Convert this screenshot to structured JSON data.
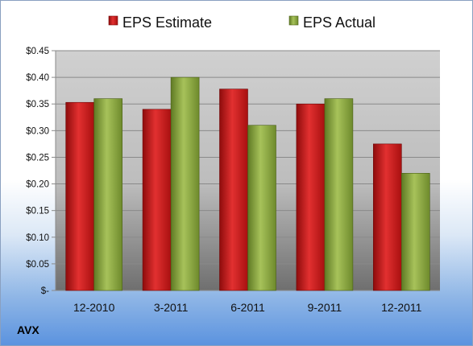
{
  "ticker": "AVX",
  "colors": {
    "estimate": "#cc1111",
    "actual": "#8aa73a"
  },
  "chart_data": {
    "type": "bar",
    "categories": [
      "12-2010",
      "3-2011",
      "6-2011",
      "9-2011",
      "12-2011"
    ],
    "series": [
      {
        "name": "EPS Estimate",
        "values": [
          0.353,
          0.34,
          0.378,
          0.35,
          0.275
        ]
      },
      {
        "name": "EPS Actual",
        "values": [
          0.36,
          0.4,
          0.31,
          0.36,
          0.22
        ]
      }
    ],
    "ylim": [
      0,
      0.45
    ],
    "yticks": [
      0,
      0.05,
      0.1,
      0.15,
      0.2,
      0.25,
      0.3,
      0.35,
      0.4,
      0.45
    ],
    "ytick_labels": [
      "$-",
      "$0.05",
      "$0.10",
      "$0.15",
      "$0.20",
      "$0.25",
      "$0.30",
      "$0.35",
      "$0.40",
      "$0.45"
    ],
    "legend_position": "top",
    "grid": true
  }
}
